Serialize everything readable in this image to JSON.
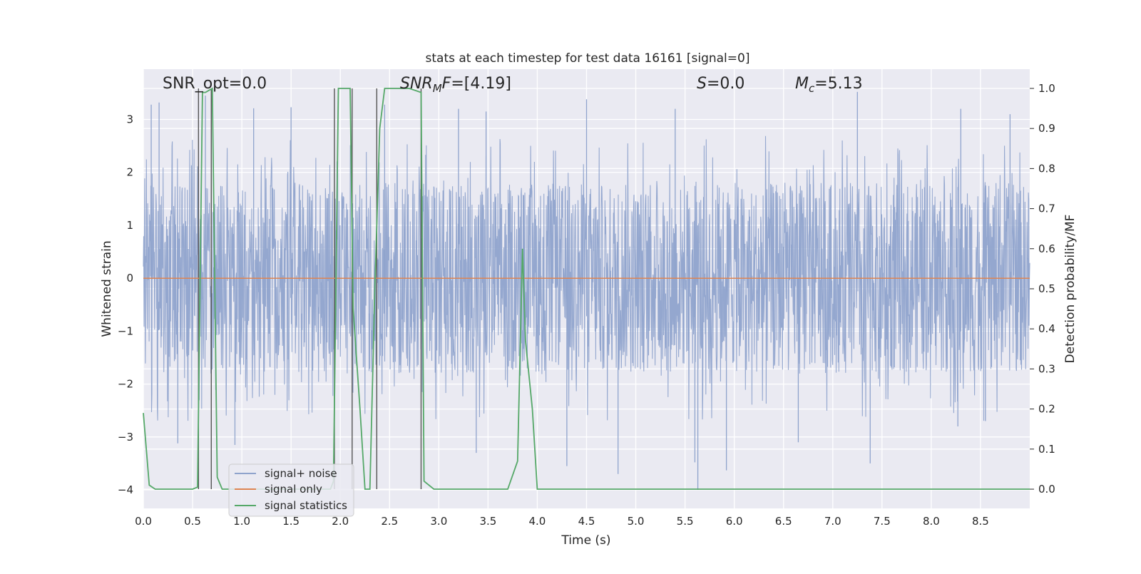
{
  "chart_data": {
    "type": "line",
    "title": "stats at each timestep for test data 16161 [signal=0]",
    "xlabel": "Time (s)",
    "ylabel_left": "Whitened strain",
    "ylabel_right": "Detection probability/MF",
    "xlim": [
      0.0,
      9.0
    ],
    "ylim_left": [
      -4.35,
      3.95
    ],
    "ylim_right": [
      -0.048,
      1.048
    ],
    "x_ticks": [
      "0.0",
      "0.5",
      "1.0",
      "1.5",
      "2.0",
      "2.5",
      "3.0",
      "3.5",
      "4.0",
      "4.5",
      "5.0",
      "5.5",
      "6.0",
      "6.5",
      "7.0",
      "7.5",
      "8.0",
      "8.5"
    ],
    "y_left_ticks": [
      "3",
      "2",
      "1",
      "0",
      "−1",
      "−2",
      "−3",
      "−4"
    ],
    "y_right_ticks": [
      "1.0",
      "0.9",
      "0.8",
      "0.7",
      "0.6",
      "0.5",
      "0.4",
      "0.3",
      "0.2",
      "0.1",
      "0.0"
    ],
    "grid": true,
    "legend_position": "lower-left",
    "annotations": [
      {
        "id": "snr-opt",
        "text": "SNR_opt=0.0",
        "x": 0.2,
        "y_frac": 1.0
      },
      {
        "id": "snr-mf",
        "text": "SNR_MF=[4.19]",
        "x": 2.6,
        "y_frac": 1.0
      },
      {
        "id": "s-value",
        "text": "S=0.0",
        "x": 5.6,
        "y_frac": 1.0
      },
      {
        "id": "chirp-mass",
        "text": "M_c=5.13",
        "x": 6.6,
        "y_frac": 1.0
      }
    ],
    "series": [
      {
        "name": "signal+ noise",
        "color": "#8fa3cc",
        "axis": "left",
        "note_stats": {
          "duration_s": 9.0,
          "envelope_min": -4.0,
          "envelope_max": 3.4,
          "typical_abs": 1.8
        },
        "spikes": [
          {
            "x": 0.08,
            "y": 3.28
          },
          {
            "x": 0.16,
            "y": 3.32
          },
          {
            "x": 0.63,
            "y": 3.45
          },
          {
            "x": 1.12,
            "y": 3.21
          },
          {
            "x": 1.5,
            "y": 3.23
          },
          {
            "x": 2.45,
            "y": 3.28
          },
          {
            "x": 3.2,
            "y": 3.2
          },
          {
            "x": 3.48,
            "y": 3.15
          },
          {
            "x": 4.5,
            "y": 3.38
          },
          {
            "x": 5.4,
            "y": 3.2
          },
          {
            "x": 7.25,
            "y": 3.52
          },
          {
            "x": 8.3,
            "y": 3.2
          },
          {
            "x": 8.8,
            "y": 3.1
          },
          {
            "x": 0.35,
            "y": -3.12
          },
          {
            "x": 0.93,
            "y": -3.15
          },
          {
            "x": 3.38,
            "y": -3.3
          },
          {
            "x": 4.3,
            "y": -3.55
          },
          {
            "x": 4.82,
            "y": -3.7
          },
          {
            "x": 5.6,
            "y": -3.48
          },
          {
            "x": 5.63,
            "y": -4.0
          },
          {
            "x": 5.92,
            "y": -3.63
          },
          {
            "x": 6.65,
            "y": -3.1
          },
          {
            "x": 7.38,
            "y": -3.5
          },
          {
            "x": 8.27,
            "y": -2.8
          },
          {
            "x": 8.55,
            "y": -2.7
          }
        ]
      },
      {
        "name": "signal only",
        "color": "#dd8452",
        "axis": "left",
        "x": [
          0.0,
          9.0
        ],
        "values": [
          0.0,
          0.0
        ]
      },
      {
        "name": "signal statistics",
        "color": "#55a868",
        "axis": "right",
        "x": [
          0.0,
          0.06,
          0.12,
          0.2,
          0.5,
          0.55,
          0.6,
          0.63,
          0.7,
          0.75,
          0.8,
          0.9,
          1.0,
          1.9,
          1.93,
          1.98,
          2.1,
          2.13,
          2.2,
          2.25,
          2.3,
          2.35,
          2.4,
          2.45,
          2.7,
          2.82,
          2.85,
          2.95,
          3.05,
          3.2,
          3.7,
          3.8,
          3.85,
          3.88,
          3.95,
          4.0,
          9.0
        ],
        "values": [
          0.19,
          0.01,
          0.0,
          0.0,
          0.0,
          0.005,
          0.99,
          0.99,
          1.0,
          0.03,
          0.0,
          0.0,
          0.0,
          0.0,
          0.02,
          1.0,
          1.0,
          0.45,
          0.2,
          0.0,
          0.0,
          0.5,
          0.9,
          1.0,
          1.0,
          0.99,
          0.02,
          0.0,
          0.0,
          0.0,
          0.0,
          0.07,
          0.6,
          0.37,
          0.2,
          0.0,
          0.0
        ]
      }
    ],
    "vertical_markers": {
      "color": "#555555",
      "x": [
        0.56,
        0.69,
        1.94,
        2.12,
        2.37,
        2.82
      ]
    }
  }
}
